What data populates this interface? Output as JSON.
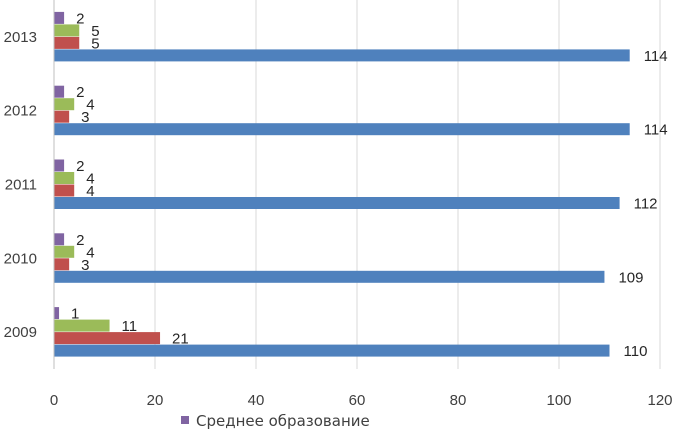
{
  "chart_data": {
    "type": "bar",
    "orientation": "horizontal",
    "categories": [
      "2009",
      "2010",
      "2011",
      "2012",
      "2013"
    ],
    "series": [
      {
        "name": "",
        "color": "#4F81BD",
        "values": [
          110,
          109,
          112,
          114,
          114
        ]
      },
      {
        "name": "",
        "color": "#C0504D",
        "values": [
          21,
          3,
          4,
          3,
          5
        ]
      },
      {
        "name": "",
        "color": "#9BBB59",
        "values": [
          11,
          4,
          4,
          4,
          5
        ]
      },
      {
        "name": "Среднее образование",
        "color": "#8064A2",
        "values": [
          1,
          2,
          2,
          2,
          2
        ]
      }
    ],
    "xlim": [
      0,
      120
    ],
    "xticks": [
      0,
      20,
      40,
      60,
      80,
      100,
      120
    ],
    "grid": "vertical",
    "legend": {
      "position": "bottom",
      "entries": [
        "Среднее образование"
      ]
    },
    "title": "",
    "xlabel": "",
    "ylabel": ""
  }
}
